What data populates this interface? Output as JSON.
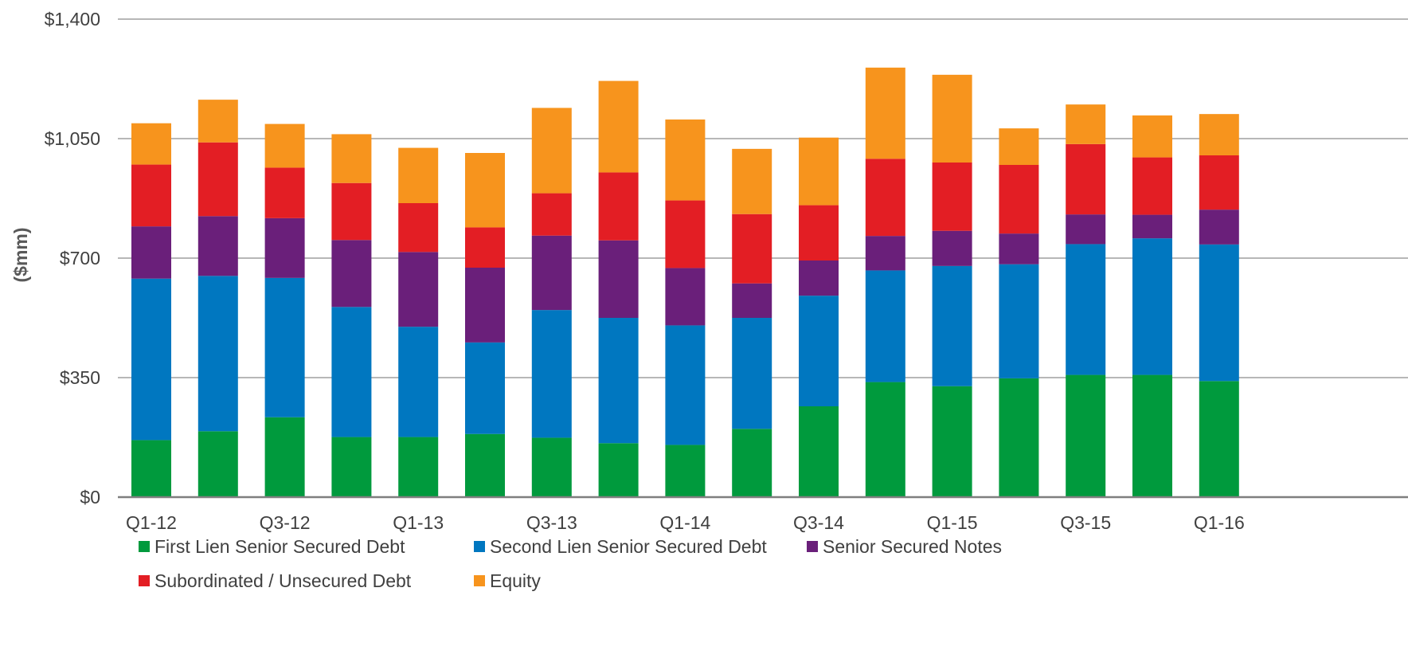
{
  "chart_data": {
    "type": "bar",
    "stacked": true,
    "title": "",
    "xlabel": "",
    "ylabel": "($mm)",
    "ylim": [
      0,
      1400
    ],
    "yticks": [
      0,
      350,
      700,
      1050,
      1400
    ],
    "ytick_labels": [
      "$0",
      "$350",
      "$700",
      "$1,050",
      "$1,400"
    ],
    "grid": true,
    "legend_position": "bottom",
    "categories": [
      "Q1-12",
      "Q2-12",
      "Q3-12",
      "Q4-12",
      "Q1-13",
      "Q2-13",
      "Q3-13",
      "Q4-13",
      "Q1-14",
      "Q2-14",
      "Q3-14",
      "Q4-14",
      "Q1-15",
      "Q2-15",
      "Q3-15",
      "Q4-15",
      "Q1-16"
    ],
    "xtick_labels_shown": [
      "Q1-12",
      "",
      "Q3-12",
      "",
      "Q1-13",
      "",
      "Q3-13",
      "",
      "Q1-14",
      "",
      "Q3-14",
      "",
      "Q1-15",
      "",
      "Q3-15",
      "",
      "Q1-16"
    ],
    "series": [
      {
        "name": "First Lien Senior Secured Debt",
        "color": "#009A3D",
        "values": [
          167,
          193,
          234,
          176,
          176,
          185,
          174,
          158,
          153,
          200,
          266,
          337,
          325,
          348,
          358,
          358,
          340
        ]
      },
      {
        "name": "Second Lien Senior Secured Debt",
        "color": "#0077C0",
        "values": [
          473,
          455,
          408,
          381,
          323,
          268,
          374,
          367,
          350,
          325,
          324,
          327,
          352,
          334,
          383,
          400,
          400
        ]
      },
      {
        "name": "Senior Secured Notes",
        "color": "#6A1F7A",
        "values": [
          153,
          175,
          175,
          196,
          219,
          219,
          218,
          227,
          168,
          101,
          103,
          101,
          103,
          90,
          87,
          69,
          102
        ]
      },
      {
        "name": "Subordinated / Unsecured Debt",
        "color": "#E31E24",
        "values": [
          181,
          216,
          148,
          167,
          143,
          118,
          124,
          199,
          198,
          203,
          162,
          226,
          200,
          201,
          206,
          168,
          159
        ]
      },
      {
        "name": "Equity",
        "color": "#F7941D",
        "values": [
          121,
          125,
          128,
          143,
          162,
          218,
          250,
          268,
          237,
          191,
          198,
          267,
          257,
          107,
          116,
          123,
          121
        ]
      }
    ]
  }
}
